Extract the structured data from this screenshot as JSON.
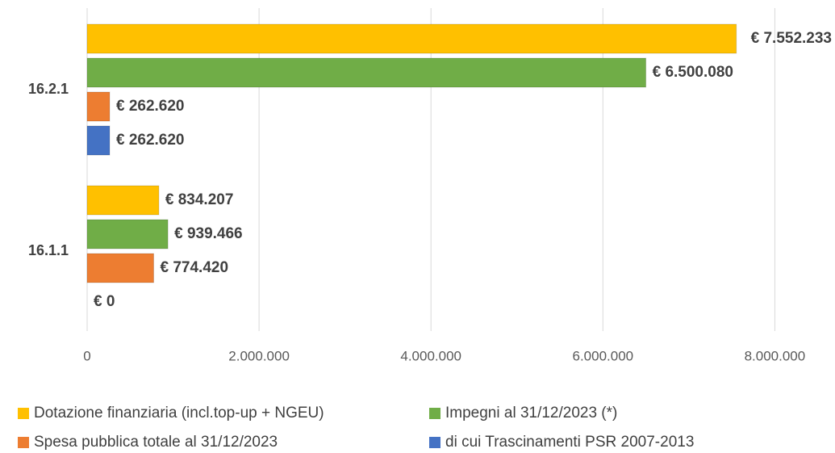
{
  "chart_data": {
    "type": "bar",
    "orientation": "horizontal",
    "categories": [
      "16.2.1",
      "16.1.1"
    ],
    "series": [
      {
        "name": "Dotazione finanziaria (incl.top-up + NGEU)",
        "color": "#ffc000",
        "values": [
          7552233,
          834207
        ],
        "value_labels": [
          "€ 7.552.233",
          "€ 834.207"
        ]
      },
      {
        "name": "Impegni al 31/12/2023 (*)",
        "color": "#70ad47",
        "values": [
          6500080,
          939466
        ],
        "value_labels": [
          "€ 6.500.080",
          "€ 939.466"
        ]
      },
      {
        "name": "Spesa pubblica totale al 31/12/2023",
        "color": "#ed7d31",
        "values": [
          262620,
          774420
        ],
        "value_labels": [
          "€ 262.620",
          "€ 774.420"
        ]
      },
      {
        "name": "di cui Trascinamenti PSR 2007-2013",
        "color": "#4472c4",
        "values": [
          262620,
          0
        ],
        "value_labels": [
          "€ 262.620",
          "€ 0"
        ]
      }
    ],
    "xlim": [
      0,
      8700000
    ],
    "xticks": [
      0,
      {
        "value": 2000000,
        "label": "2.000.000"
      },
      {
        "value": 4000000,
        "label": "4.000.000"
      },
      {
        "value": 6000000,
        "label": "6.000.000"
      },
      {
        "value": 8000000,
        "label": "8.000.000"
      }
    ],
    "grid": true,
    "legend": "bottom"
  }
}
